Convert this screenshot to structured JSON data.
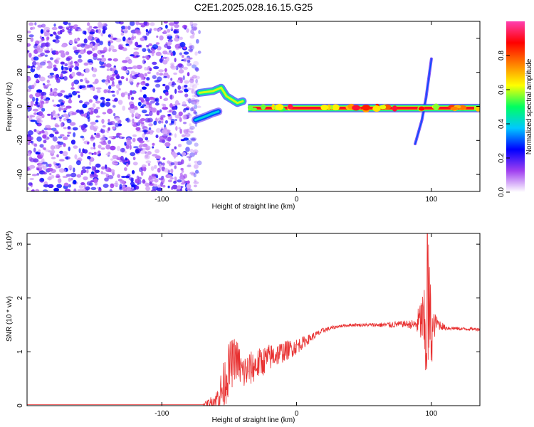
{
  "chart_data": [
    {
      "type": "heatmap",
      "panel": "spectrogram",
      "title": "C2E1.2025.028.16.15.G25",
      "xlabel": "Height of straight line (km)",
      "ylabel": "Frequency (Hz)",
      "xlim": [
        -200,
        136
      ],
      "ylim": [
        -50,
        50
      ],
      "xticks": [
        -100,
        0,
        100
      ],
      "xtick_labels": [
        "-100",
        "0",
        "100"
      ],
      "yticks": [
        -40,
        -20,
        0,
        20,
        40
      ],
      "ytick_labels": [
        "-40",
        "-20",
        "0",
        "20",
        "40"
      ],
      "colorbar": {
        "label": "Normalized spectral amplitude",
        "range": [
          0,
          1
        ],
        "ticks": [
          0.0,
          0.2,
          0.4,
          0.6,
          0.8
        ],
        "tick_labels": [
          "0.0",
          "0.2",
          "0.4",
          "0.6",
          "0.8"
        ],
        "colors": [
          "#ffffff",
          "#a040f0",
          "#0000ff",
          "#00c8ff",
          "#00ff60",
          "#ffff00",
          "#ff8000",
          "#ff0000",
          "#ff40b0"
        ]
      },
      "features": [
        {
          "name": "noise",
          "x_range": [
            -200,
            -72
          ],
          "freq_range": [
            -50,
            50
          ],
          "amplitude": 0.15
        },
        {
          "name": "upper-branch",
          "points": [
            [
              -72,
              8
            ],
            [
              -62,
              9
            ],
            [
              -56,
              11
            ],
            [
              -52,
              6
            ],
            [
              -48,
              4
            ],
            [
              -44,
              2
            ],
            [
              -40,
              3
            ]
          ],
          "amplitude": 0.6
        },
        {
          "name": "lower-branch",
          "points": [
            [
              -75,
              -8
            ],
            [
              -68,
              -6
            ],
            [
              -62,
              -4
            ],
            [
              -58,
              -3
            ]
          ],
          "amplitude": 0.4
        },
        {
          "name": "carrier-line",
          "x_range": [
            -36,
            136
          ],
          "frequency": -1,
          "amplitude": 0.95
        },
        {
          "name": "spike-line",
          "points": [
            [
              88,
              -22
            ],
            [
              93,
              -8
            ],
            [
              96,
              5
            ],
            [
              100,
              28
            ]
          ],
          "amplitude": 0.25
        }
      ]
    },
    {
      "type": "line",
      "panel": "snr",
      "xlabel": "Height of straight line (km)",
      "ylabel": "SNR (10 * v/v)",
      "y_scale_label": "(x10",
      "y_scale_exponent": "4",
      "y_scale_close": ")",
      "xlim": [
        -200,
        136
      ],
      "ylim": [
        0,
        3.2
      ],
      "xticks": [
        -100,
        0,
        100
      ],
      "xtick_labels": [
        "-100",
        "0",
        "100"
      ],
      "yticks": [
        0,
        1,
        2,
        3
      ],
      "ytick_labels": [
        "0",
        "1",
        "2",
        "3"
      ],
      "series": [
        {
          "name": "SNR",
          "color": "#e83030",
          "x": [
            -200,
            -120,
            -70,
            -60,
            -55,
            -50,
            -45,
            -40,
            -30,
            -20,
            -10,
            0,
            10,
            20,
            30,
            40,
            50,
            60,
            70,
            80,
            88,
            93,
            96,
            98,
            100,
            103,
            110,
            120,
            136
          ],
          "y": [
            0.02,
            0.02,
            0.02,
            0.1,
            0.3,
            0.7,
            0.9,
            0.6,
            0.75,
            0.9,
            1.0,
            1.1,
            1.25,
            1.4,
            1.47,
            1.5,
            1.5,
            1.5,
            1.5,
            1.52,
            1.5,
            1.6,
            1.2,
            1.8,
            1.3,
            1.55,
            1.45,
            1.43,
            1.42
          ],
          "noise_amplitude": [
            0,
            0,
            0,
            0.15,
            0.45,
            0.5,
            0.4,
            0.35,
            0.3,
            0.25,
            0.2,
            0.15,
            0.08,
            0.05,
            0.03,
            0.03,
            0.03,
            0.04,
            0.06,
            0.06,
            0.1,
            0.5,
            1.0,
            1.4,
            0.6,
            0.15,
            0.05,
            0.03,
            0.03
          ],
          "peak": {
            "x": 97,
            "y": 3.2
          }
        }
      ]
    }
  ]
}
